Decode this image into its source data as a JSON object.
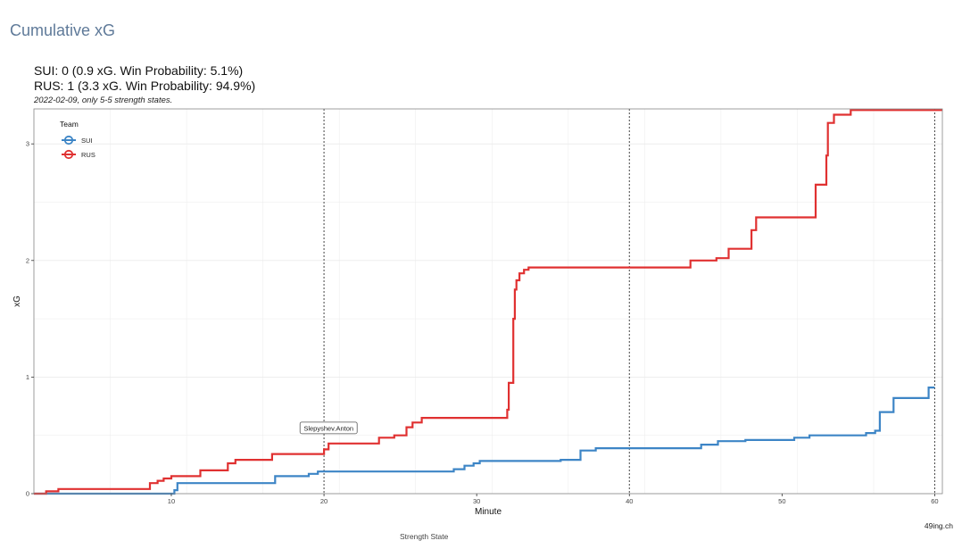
{
  "page": {
    "section_title": "Cumulative xG",
    "subtitle_line1": "SUI: 0 (0.9 xG. Win Probability: 5.1%)",
    "subtitle_line2": "RUS: 1 (3.3 xG. Win Probability: 94.9%)",
    "caption": "2022-02-09, only 5-5 strength states.",
    "source": "49ing.ch",
    "strength_state_label": "Strength State"
  },
  "colors": {
    "SUI": "#3d85c6",
    "RUS": "#e03131",
    "period_line": "#444444",
    "grid": "#ebebeb",
    "panel_border": "#888888"
  },
  "chart_data": {
    "type": "line",
    "step": true,
    "xlabel": "Minute",
    "ylabel": "xG",
    "xlim": [
      1,
      60.5
    ],
    "ylim": [
      0,
      3.3
    ],
    "x_ticks": [
      10,
      20,
      30,
      40,
      50,
      60
    ],
    "y_ticks": [
      0,
      1,
      2,
      3
    ],
    "grid": true,
    "period_lines": [
      20,
      40,
      60
    ],
    "legend": {
      "title": "Team",
      "position": "top-left",
      "entries": [
        "SUI",
        "RUS"
      ]
    },
    "annotations": [
      {
        "text": "Slepyshev.Anton",
        "x": 20.3,
        "y": 0.43
      }
    ],
    "series": [
      {
        "name": "SUI",
        "points": [
          [
            1,
            0
          ],
          [
            10.2,
            0
          ],
          [
            10.2,
            0.03
          ],
          [
            10.4,
            0.03
          ],
          [
            10.4,
            0.09
          ],
          [
            16.8,
            0.09
          ],
          [
            16.8,
            0.15
          ],
          [
            19,
            0.15
          ],
          [
            19,
            0.17
          ],
          [
            19.6,
            0.17
          ],
          [
            19.6,
            0.19
          ],
          [
            28.5,
            0.19
          ],
          [
            28.5,
            0.21
          ],
          [
            29.2,
            0.21
          ],
          [
            29.2,
            0.24
          ],
          [
            29.8,
            0.24
          ],
          [
            29.8,
            0.26
          ],
          [
            30.2,
            0.26
          ],
          [
            30.2,
            0.28
          ],
          [
            35.5,
            0.28
          ],
          [
            35.5,
            0.29
          ],
          [
            36.8,
            0.29
          ],
          [
            36.8,
            0.37
          ],
          [
            37.8,
            0.37
          ],
          [
            37.8,
            0.39
          ],
          [
            44.7,
            0.39
          ],
          [
            44.7,
            0.42
          ],
          [
            45.8,
            0.42
          ],
          [
            45.8,
            0.45
          ],
          [
            47.6,
            0.45
          ],
          [
            47.6,
            0.46
          ],
          [
            50.8,
            0.46
          ],
          [
            50.8,
            0.48
          ],
          [
            51.8,
            0.48
          ],
          [
            51.8,
            0.5
          ],
          [
            55.5,
            0.5
          ],
          [
            55.5,
            0.52
          ],
          [
            56.1,
            0.52
          ],
          [
            56.1,
            0.54
          ],
          [
            56.4,
            0.54
          ],
          [
            56.4,
            0.7
          ],
          [
            57.3,
            0.7
          ],
          [
            57.3,
            0.82
          ],
          [
            59.6,
            0.82
          ],
          [
            59.6,
            0.91
          ],
          [
            60,
            0.91
          ]
        ]
      },
      {
        "name": "RUS",
        "points": [
          [
            1,
            0
          ],
          [
            1.8,
            0
          ],
          [
            1.8,
            0.02
          ],
          [
            2.6,
            0.02
          ],
          [
            2.6,
            0.04
          ],
          [
            8.6,
            0.04
          ],
          [
            8.6,
            0.09
          ],
          [
            9.1,
            0.09
          ],
          [
            9.1,
            0.11
          ],
          [
            9.5,
            0.11
          ],
          [
            9.5,
            0.13
          ],
          [
            10,
            0.13
          ],
          [
            10,
            0.15
          ],
          [
            11.9,
            0.15
          ],
          [
            11.9,
            0.2
          ],
          [
            13.7,
            0.2
          ],
          [
            13.7,
            0.26
          ],
          [
            14.2,
            0.26
          ],
          [
            14.2,
            0.29
          ],
          [
            16.6,
            0.29
          ],
          [
            16.6,
            0.34
          ],
          [
            20,
            0.34
          ],
          [
            20,
            0.38
          ],
          [
            20.3,
            0.38
          ],
          [
            20.3,
            0.43
          ],
          [
            23.6,
            0.43
          ],
          [
            23.6,
            0.48
          ],
          [
            24.6,
            0.48
          ],
          [
            24.6,
            0.5
          ],
          [
            25.4,
            0.5
          ],
          [
            25.4,
            0.57
          ],
          [
            25.8,
            0.57
          ],
          [
            25.8,
            0.61
          ],
          [
            26.4,
            0.61
          ],
          [
            26.4,
            0.65
          ],
          [
            32,
            0.65
          ],
          [
            32,
            0.72
          ],
          [
            32.1,
            0.72
          ],
          [
            32.1,
            0.95
          ],
          [
            32.4,
            0.95
          ],
          [
            32.4,
            1.5
          ],
          [
            32.5,
            1.5
          ],
          [
            32.5,
            1.75
          ],
          [
            32.6,
            1.75
          ],
          [
            32.6,
            1.83
          ],
          [
            32.8,
            1.83
          ],
          [
            32.8,
            1.89
          ],
          [
            33.1,
            1.89
          ],
          [
            33.1,
            1.92
          ],
          [
            33.4,
            1.92
          ],
          [
            33.4,
            1.94
          ],
          [
            44,
            1.94
          ],
          [
            44,
            2.0
          ],
          [
            45.7,
            2.0
          ],
          [
            45.7,
            2.02
          ],
          [
            46.5,
            2.02
          ],
          [
            46.5,
            2.1
          ],
          [
            48,
            2.1
          ],
          [
            48,
            2.26
          ],
          [
            48.3,
            2.26
          ],
          [
            48.3,
            2.37
          ],
          [
            52.2,
            2.37
          ],
          [
            52.2,
            2.65
          ],
          [
            52.9,
            2.65
          ],
          [
            52.9,
            2.9
          ],
          [
            53,
            2.9
          ],
          [
            53,
            3.18
          ],
          [
            53.4,
            3.18
          ],
          [
            53.4,
            3.25
          ],
          [
            54.5,
            3.25
          ],
          [
            54.5,
            3.29
          ],
          [
            60.5,
            3.29
          ]
        ]
      }
    ]
  }
}
